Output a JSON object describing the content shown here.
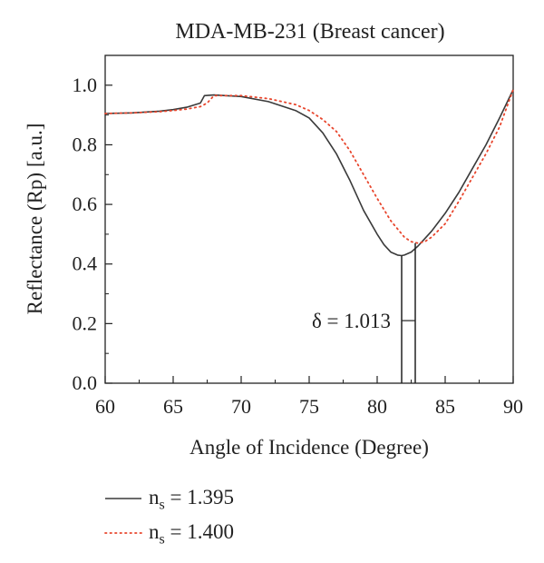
{
  "chart_data": {
    "type": "line",
    "title": "MDA-MB-231 (Breast cancer)",
    "xlabel": "Angle of Incidence (Degree)",
    "ylabel": "Reflectance (Rp) [a.u.]",
    "xlim": [
      60,
      90
    ],
    "ylim": [
      0.0,
      1.1
    ],
    "xticks": [
      "60",
      "65",
      "70",
      "75",
      "80",
      "85",
      "90"
    ],
    "yticks": [
      "0.0",
      "0.2",
      "0.4",
      "0.6",
      "0.8",
      "1.0"
    ],
    "grid": false,
    "series": [
      {
        "name": "n",
        "subscript": "s",
        "name_suffix": " = 1.395",
        "style": "solid",
        "color": "#3a3a3a",
        "x": [
          60,
          62,
          64,
          65,
          66,
          67,
          67.3,
          68,
          70,
          72,
          74,
          75,
          76,
          77,
          78,
          79,
          80,
          80.5,
          81,
          81.5,
          81.8,
          82,
          82.5,
          83,
          83.5,
          84,
          85,
          86,
          87,
          88,
          89,
          90
        ],
        "y": [
          0.905,
          0.907,
          0.913,
          0.918,
          0.926,
          0.94,
          0.965,
          0.967,
          0.962,
          0.945,
          0.915,
          0.89,
          0.84,
          0.77,
          0.68,
          0.58,
          0.5,
          0.465,
          0.44,
          0.43,
          0.428,
          0.43,
          0.44,
          0.46,
          0.485,
          0.51,
          0.57,
          0.64,
          0.72,
          0.8,
          0.89,
          0.985
        ]
      },
      {
        "name": "n",
        "subscript": "s",
        "name_suffix": " = 1.400",
        "style": "dotted",
        "color": "#e8452c",
        "x": [
          60,
          62,
          64,
          65,
          66,
          67,
          67.5,
          68,
          70,
          72,
          74,
          75,
          76,
          77,
          78,
          79,
          80,
          81,
          82,
          82.5,
          83,
          83.5,
          84,
          85,
          86,
          87,
          88,
          89,
          90
        ],
        "y": [
          0.905,
          0.907,
          0.911,
          0.915,
          0.92,
          0.928,
          0.94,
          0.965,
          0.965,
          0.955,
          0.935,
          0.915,
          0.885,
          0.845,
          0.78,
          0.7,
          0.62,
          0.545,
          0.49,
          0.475,
          0.47,
          0.475,
          0.49,
          0.535,
          0.61,
          0.69,
          0.77,
          0.86,
          0.985
        ]
      }
    ],
    "annotations": [
      {
        "text": "δ = 1.013",
        "x1": 81.8,
        "x2": 82.8,
        "y_arrow": 0.21
      }
    ]
  }
}
